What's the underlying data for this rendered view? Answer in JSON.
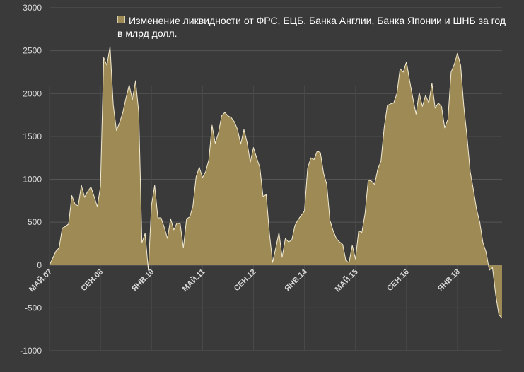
{
  "chart_data": {
    "type": "area",
    "title": "",
    "xlabel": "",
    "ylabel": "",
    "ylim": [
      -1000,
      3000
    ],
    "yticks": [
      3000,
      2500,
      2000,
      1500,
      1000,
      500,
      0,
      -500,
      -1000
    ],
    "yticks_labels": [
      "3000",
      "2500",
      "2000",
      "1500",
      "1000",
      "500",
      "0",
      "-500",
      "-1000"
    ],
    "grid": "horizontal",
    "legend_position": "top",
    "colors": {
      "background": "#3a3a3a",
      "area_fill": "#9e8a54",
      "area_line": "#f2ead0",
      "grid": "#555555",
      "text": "#d9d9d9"
    },
    "x_tick_labels": [
      {
        "label": "МАЙ.07",
        "x": "2007-05"
      },
      {
        "label": "СЕН.08",
        "x": "2008-09"
      },
      {
        "label": "ЯНВ.10",
        "x": "2010-01"
      },
      {
        "label": "МАЙ.11",
        "x": "2011-05"
      },
      {
        "label": "СЕН.12",
        "x": "2012-09"
      },
      {
        "label": "ЯНВ.14",
        "x": "2014-01"
      },
      {
        "label": "МАЙ.15",
        "x": "2015-05"
      },
      {
        "label": "СЕН.16",
        "x": "2016-09"
      },
      {
        "label": "ЯНВ.18",
        "x": "2018-01"
      }
    ],
    "series": [
      {
        "name": "Изменение ликвидности от ФРС, ЕЦБ, Банка Англии, Банка Японии и ШНБ за год в млрд долл.",
        "points": [
          [
            "2007-05",
            0
          ],
          [
            "2007-06",
            80
          ],
          [
            "2007-07",
            160
          ],
          [
            "2007-08",
            200
          ],
          [
            "2007-09",
            430
          ],
          [
            "2007-10",
            450
          ],
          [
            "2007-11",
            480
          ],
          [
            "2007-12",
            810
          ],
          [
            "2008-01",
            710
          ],
          [
            "2008-02",
            690
          ],
          [
            "2008-03",
            930
          ],
          [
            "2008-04",
            790
          ],
          [
            "2008-05",
            860
          ],
          [
            "2008-06",
            910
          ],
          [
            "2008-07",
            800
          ],
          [
            "2008-08",
            680
          ],
          [
            "2008-09",
            920
          ],
          [
            "2008-10",
            2420
          ],
          [
            "2008-11",
            2330
          ],
          [
            "2008-12",
            2550
          ],
          [
            "2009-01",
            1870
          ],
          [
            "2009-02",
            1570
          ],
          [
            "2009-03",
            1660
          ],
          [
            "2009-04",
            1780
          ],
          [
            "2009-05",
            1950
          ],
          [
            "2009-06",
            2100
          ],
          [
            "2009-07",
            1930
          ],
          [
            "2009-08",
            2150
          ],
          [
            "2009-09",
            1780
          ],
          [
            "2009-10",
            260
          ],
          [
            "2009-11",
            370
          ],
          [
            "2009-12",
            -60
          ],
          [
            "2010-01",
            700
          ],
          [
            "2010-02",
            930
          ],
          [
            "2010-03",
            550
          ],
          [
            "2010-04",
            550
          ],
          [
            "2010-05",
            440
          ],
          [
            "2010-06",
            310
          ],
          [
            "2010-07",
            540
          ],
          [
            "2010-08",
            410
          ],
          [
            "2010-09",
            490
          ],
          [
            "2010-10",
            480
          ],
          [
            "2010-11",
            200
          ],
          [
            "2010-12",
            540
          ],
          [
            "2011-01",
            560
          ],
          [
            "2011-02",
            690
          ],
          [
            "2011-03",
            1030
          ],
          [
            "2011-04",
            1140
          ],
          [
            "2011-05",
            1020
          ],
          [
            "2011-06",
            1090
          ],
          [
            "2011-07",
            1230
          ],
          [
            "2011-08",
            1630
          ],
          [
            "2011-09",
            1420
          ],
          [
            "2011-10",
            1540
          ],
          [
            "2011-11",
            1740
          ],
          [
            "2011-12",
            1780
          ],
          [
            "2012-01",
            1740
          ],
          [
            "2012-02",
            1720
          ],
          [
            "2012-03",
            1670
          ],
          [
            "2012-04",
            1580
          ],
          [
            "2012-05",
            1410
          ],
          [
            "2012-06",
            1580
          ],
          [
            "2012-07",
            1430
          ],
          [
            "2012-08",
            1200
          ],
          [
            "2012-09",
            1370
          ],
          [
            "2012-10",
            1250
          ],
          [
            "2012-11",
            1140
          ],
          [
            "2012-12",
            800
          ],
          [
            "2013-01",
            820
          ],
          [
            "2013-02",
            370
          ],
          [
            "2013-03",
            30
          ],
          [
            "2013-04",
            200
          ],
          [
            "2013-05",
            380
          ],
          [
            "2013-06",
            90
          ],
          [
            "2013-07",
            310
          ],
          [
            "2013-08",
            270
          ],
          [
            "2013-09",
            290
          ],
          [
            "2013-10",
            460
          ],
          [
            "2013-11",
            530
          ],
          [
            "2013-12",
            580
          ],
          [
            "2014-01",
            630
          ],
          [
            "2014-02",
            1130
          ],
          [
            "2014-03",
            1250
          ],
          [
            "2014-04",
            1230
          ],
          [
            "2014-05",
            1330
          ],
          [
            "2014-06",
            1310
          ],
          [
            "2014-07",
            1070
          ],
          [
            "2014-08",
            940
          ],
          [
            "2014-09",
            520
          ],
          [
            "2014-10",
            400
          ],
          [
            "2014-11",
            310
          ],
          [
            "2014-12",
            270
          ],
          [
            "2015-01",
            240
          ],
          [
            "2015-02",
            50
          ],
          [
            "2015-03",
            30
          ],
          [
            "2015-04",
            230
          ],
          [
            "2015-05",
            70
          ],
          [
            "2015-06",
            400
          ],
          [
            "2015-07",
            380
          ],
          [
            "2015-08",
            600
          ],
          [
            "2015-09",
            990
          ],
          [
            "2015-10",
            980
          ],
          [
            "2015-11",
            940
          ],
          [
            "2015-12",
            1120
          ],
          [
            "2016-01",
            1210
          ],
          [
            "2016-02",
            1600
          ],
          [
            "2016-03",
            1860
          ],
          [
            "2016-04",
            1880
          ],
          [
            "2016-05",
            1890
          ],
          [
            "2016-06",
            2000
          ],
          [
            "2016-07",
            2290
          ],
          [
            "2016-08",
            2250
          ],
          [
            "2016-09",
            2370
          ],
          [
            "2016-10",
            2150
          ],
          [
            "2016-11",
            1950
          ],
          [
            "2016-12",
            1760
          ],
          [
            "2017-01",
            2010
          ],
          [
            "2017-02",
            1850
          ],
          [
            "2017-03",
            1980
          ],
          [
            "2017-04",
            1890
          ],
          [
            "2017-05",
            2120
          ],
          [
            "2017-06",
            1830
          ],
          [
            "2017-07",
            1890
          ],
          [
            "2017-08",
            1850
          ],
          [
            "2017-09",
            1600
          ],
          [
            "2017-10",
            1700
          ],
          [
            "2017-11",
            2250
          ],
          [
            "2017-12",
            2340
          ],
          [
            "2018-01",
            2470
          ],
          [
            "2018-02",
            2330
          ],
          [
            "2018-03",
            1850
          ],
          [
            "2018-04",
            1500
          ],
          [
            "2018-05",
            1090
          ],
          [
            "2018-06",
            880
          ],
          [
            "2018-07",
            650
          ],
          [
            "2018-08",
            500
          ],
          [
            "2018-09",
            260
          ],
          [
            "2018-10",
            150
          ],
          [
            "2018-11",
            -60
          ],
          [
            "2018-12",
            -30
          ],
          [
            "2019-01",
            -350
          ],
          [
            "2019-02",
            -580
          ],
          [
            "2019-03",
            -620
          ]
        ]
      }
    ]
  }
}
